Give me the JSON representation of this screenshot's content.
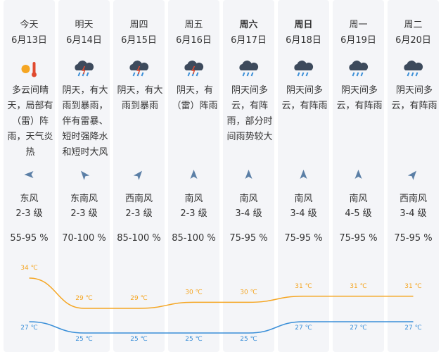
{
  "days": [
    {
      "name": "今天",
      "date": "6月13日",
      "weather": "多云间晴天，局部有（雷）阵雨，天气炎热",
      "wind_dir": "东风",
      "wind_level": "2-3 级",
      "humidity": "55-95 %"
    },
    {
      "name": "明天",
      "date": "6月14日",
      "weather": "阴天，有大雨到暴雨，伴有雷暴、短时强降水和短时大风",
      "wind_dir": "东南风",
      "wind_level": "2-3 级",
      "humidity": "70-100 %"
    },
    {
      "name": "周四",
      "date": "6月15日",
      "weather": "阴天，有大雨到暴雨",
      "wind_dir": "西南风",
      "wind_level": "2-3 级",
      "humidity": "85-100 %"
    },
    {
      "name": "周五",
      "date": "6月16日",
      "weather": "阴天，有（雷）阵雨",
      "wind_dir": "南风",
      "wind_level": "2-3 级",
      "humidity": "85-100 %"
    },
    {
      "name": "周六",
      "date": "6月17日",
      "weather": "阴天间多云，有阵雨，部分时间雨势较大",
      "wind_dir": "南风",
      "wind_level": "3-4 级",
      "humidity": "75-95 %"
    },
    {
      "name": "周日",
      "date": "6月18日",
      "weather": "阴天间多云，有阵雨",
      "wind_dir": "南风",
      "wind_level": "3-4 级",
      "humidity": "75-95 %"
    },
    {
      "name": "周一",
      "date": "6月19日",
      "weather": "阴天间多云，有阵雨",
      "wind_dir": "南风",
      "wind_level": "4-5 级",
      "humidity": "75-95 %"
    },
    {
      "name": "周二",
      "date": "6月20日",
      "weather": "阴天间多云，有阵雨",
      "wind_dir": "西南风",
      "wind_level": "3-4 级",
      "humidity": "75-95 %"
    }
  ],
  "temperature": {
    "high": {
      "color": "#f5a623",
      "values": [
        34,
        29,
        29,
        30,
        30,
        31,
        31,
        31
      ],
      "value_labels": [
        "34 ℃",
        "29 ℃",
        "29 ℃",
        "30 ℃",
        "30 ℃",
        "31 ℃",
        "31 ℃",
        "31 ℃"
      ]
    },
    "low": {
      "color": "#3a8fd8",
      "values": [
        27,
        25,
        25,
        25,
        25,
        27,
        27,
        27
      ],
      "value_labels": [
        "27 ℃",
        "25 ℃",
        "25 ℃",
        "25 ℃",
        "25 ℃",
        "27 ℃",
        "27 ℃",
        "27 ℃"
      ]
    }
  }
}
